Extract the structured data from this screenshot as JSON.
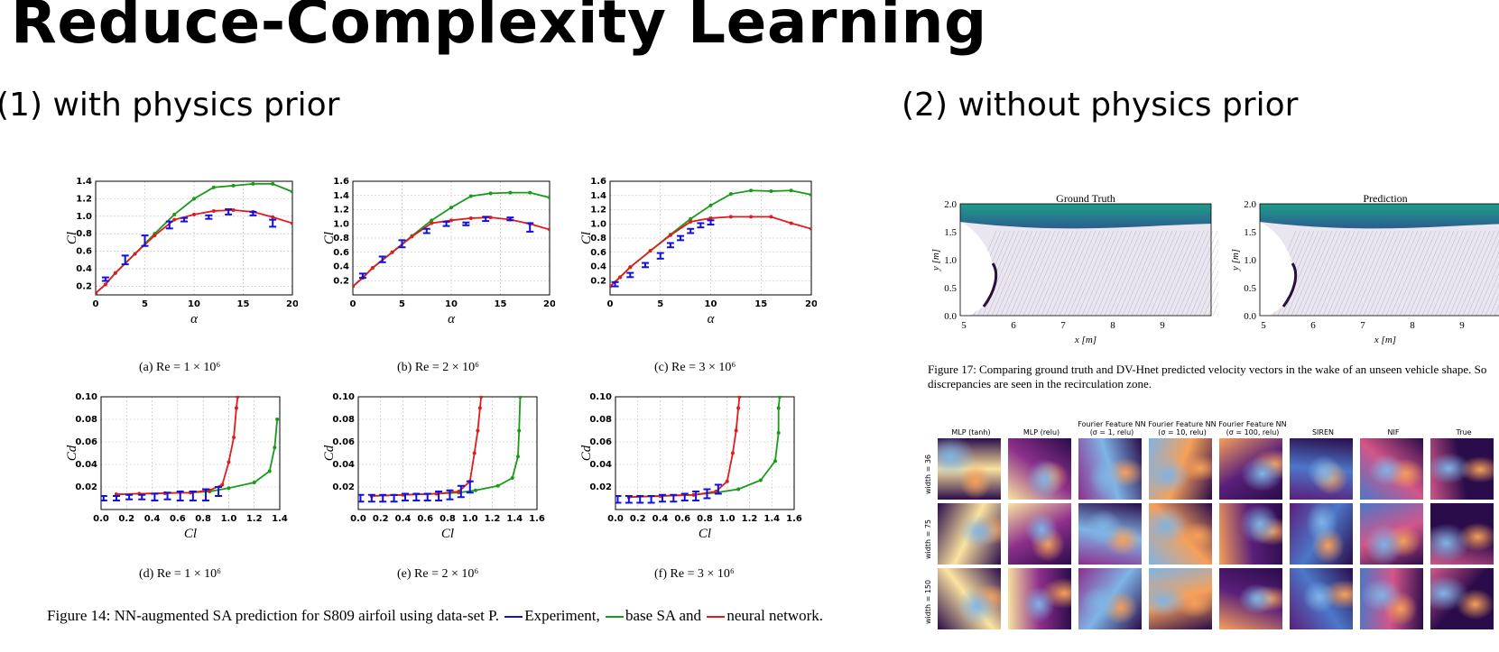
{
  "slide": {
    "title": "Reduce-Complexity Learning",
    "left_heading": "(1) with physics prior",
    "right_heading": "(2) without physics prior"
  },
  "colors": {
    "experiment": "#1010e0",
    "base_sa": "#1a9a1a",
    "neural": "#e01c1c",
    "grid": "#bbbbbb"
  },
  "subcaptions": [
    "(a)  Re = 1 × 10⁶",
    "(b)  Re = 2 × 10⁶",
    "(c)  Re = 3 × 10⁶",
    "(d)  Re = 1 × 10⁶",
    "(e)  Re = 2 × 10⁶",
    "(f)  Re = 3 × 10⁶"
  ],
  "figure14": {
    "text_before": "Figure 14: NN-augmented SA prediction for S809 airfoil using data-set P.",
    "legend_experiment": "Experiment,",
    "legend_base": "base SA and",
    "legend_neural": "neural",
    "text_after": "network."
  },
  "figure17": {
    "caption": "Figure 17:  Comparing ground truth and DV-Hnet predicted velocity vectors in the wake of an unseen vehicle shape.  So discrepancies are seen in the recirculation zone.",
    "panels": [
      {
        "title": "Ground Truth",
        "ylabel": "y [m]",
        "xlabel": "x [m]",
        "yticks": [
          "2.0",
          "1.5",
          "1.0",
          "0.5",
          "0.0"
        ],
        "xticks": [
          "5",
          "6",
          "7",
          "8",
          "9"
        ]
      },
      {
        "title": "Prediction",
        "ylabel": "y [m]",
        "xlabel": "x [m]",
        "yticks": [
          "2.0",
          "1.5",
          "1.0",
          "0.5",
          "0.0"
        ],
        "xticks": [
          "5",
          "6",
          "7",
          "8",
          "9"
        ]
      }
    ]
  },
  "grid_figure": {
    "columns": [
      "MLP (tanh)",
      "MLP (relu)",
      "Fourier Feature NN\n(σ = 1, relu)",
      "Fourier Feature NN\n(σ = 10, relu)",
      "Fourier Feature NN\n(σ = 100, relu)",
      "SIREN",
      "NIF",
      "True"
    ],
    "rows": [
      "width = 36",
      "width = 75",
      "width = 150"
    ]
  },
  "chart_data": [
    {
      "type": "line",
      "panel": "a",
      "xlabel": "α",
      "ylabel": "Cl",
      "xlim": [
        0,
        20
      ],
      "ylim": [
        0.1,
        1.4
      ],
      "xticks": [
        0,
        5,
        10,
        15,
        20
      ],
      "yticks": [
        0.2,
        0.4,
        0.6,
        0.8,
        1.0,
        1.2,
        1.4
      ],
      "grid": true,
      "series": [
        {
          "role": "base_sa",
          "x": [
            0,
            1,
            2,
            4,
            6,
            8,
            10,
            12,
            14,
            16,
            18,
            20
          ],
          "y": [
            0.12,
            0.22,
            0.35,
            0.57,
            0.8,
            1.02,
            1.2,
            1.33,
            1.35,
            1.37,
            1.37,
            1.28
          ]
        },
        {
          "role": "neural",
          "x": [
            0,
            1,
            2,
            4,
            6,
            8,
            10,
            12,
            14,
            16,
            18,
            20
          ],
          "y": [
            0.12,
            0.22,
            0.35,
            0.57,
            0.78,
            0.96,
            1.02,
            1.06,
            1.07,
            1.05,
            0.99,
            0.92
          ]
        },
        {
          "role": "experiment",
          "x": [
            1,
            3,
            5,
            7.5,
            9,
            11.5,
            13.5,
            16,
            18
          ],
          "y": [
            0.28,
            0.5,
            0.72,
            0.9,
            0.96,
            0.99,
            1.05,
            1.03,
            0.92
          ],
          "err": [
            0.02,
            0.05,
            0.06,
            0.04,
            0.02,
            0.02,
            0.03,
            0.02,
            0.04
          ]
        }
      ]
    },
    {
      "type": "line",
      "panel": "b",
      "xlabel": "α",
      "ylabel": "Cl",
      "xlim": [
        0,
        20
      ],
      "ylim": [
        0.0,
        1.6
      ],
      "xticks": [
        0,
        5,
        10,
        15,
        20
      ],
      "yticks": [
        0.2,
        0.4,
        0.6,
        0.8,
        1.0,
        1.2,
        1.4,
        1.6
      ],
      "grid": true,
      "series": [
        {
          "role": "base_sa",
          "x": [
            0,
            1,
            2,
            4,
            6,
            8,
            10,
            12,
            14,
            16,
            18,
            20
          ],
          "y": [
            0.12,
            0.24,
            0.38,
            0.6,
            0.83,
            1.05,
            1.23,
            1.39,
            1.43,
            1.44,
            1.44,
            1.37
          ]
        },
        {
          "role": "neural",
          "x": [
            0,
            1,
            2,
            4,
            6,
            8,
            10,
            12,
            14,
            16,
            18,
            20
          ],
          "y": [
            0.12,
            0.24,
            0.38,
            0.6,
            0.82,
            1.01,
            1.05,
            1.08,
            1.09,
            1.06,
            1.0,
            0.92
          ]
        },
        {
          "role": "experiment",
          "x": [
            1,
            3,
            5,
            7.5,
            9.5,
            11.5,
            13.5,
            16,
            18
          ],
          "y": [
            0.27,
            0.5,
            0.72,
            0.9,
            1.0,
            1.0,
            1.07,
            1.07,
            0.95
          ],
          "err": [
            0.03,
            0.04,
            0.05,
            0.03,
            0.03,
            0.02,
            0.03,
            0.02,
            0.06
          ]
        }
      ]
    },
    {
      "type": "line",
      "panel": "c",
      "xlabel": "α",
      "ylabel": "Cl",
      "xlim": [
        0,
        20
      ],
      "ylim": [
        0.0,
        1.6
      ],
      "xticks": [
        0,
        5,
        10,
        15,
        20
      ],
      "yticks": [
        0.2,
        0.4,
        0.6,
        0.8,
        1.0,
        1.2,
        1.4,
        1.6
      ],
      "grid": true,
      "series": [
        {
          "role": "base_sa",
          "x": [
            0,
            1,
            2,
            4,
            6,
            8,
            10,
            12,
            14,
            16,
            18,
            20
          ],
          "y": [
            0.12,
            0.25,
            0.39,
            0.62,
            0.85,
            1.07,
            1.26,
            1.42,
            1.47,
            1.46,
            1.47,
            1.41
          ]
        },
        {
          "role": "neural",
          "x": [
            0,
            1,
            2,
            4,
            6,
            8,
            10,
            12,
            14,
            16,
            18,
            20
          ],
          "y": [
            0.12,
            0.25,
            0.39,
            0.62,
            0.84,
            1.03,
            1.08,
            1.1,
            1.1,
            1.1,
            1.01,
            0.93
          ]
        },
        {
          "role": "experiment",
          "x": [
            0.5,
            2,
            3.5,
            5,
            6,
            7,
            8,
            9,
            10
          ],
          "y": [
            0.15,
            0.28,
            0.42,
            0.55,
            0.7,
            0.8,
            0.9,
            0.98,
            1.02
          ],
          "err": [
            0.03,
            0.03,
            0.03,
            0.04,
            0.03,
            0.03,
            0.03,
            0.03,
            0.03
          ]
        }
      ]
    },
    {
      "type": "line",
      "panel": "d",
      "xlabel": "Cl",
      "ylabel": "Cd",
      "xlim": [
        0,
        1.4
      ],
      "ylim": [
        0,
        0.1
      ],
      "xticks": [
        0.0,
        0.2,
        0.4,
        0.6,
        0.8,
        1.0,
        1.2,
        1.4
      ],
      "yticks": [
        0.02,
        0.04,
        0.06,
        0.08,
        0.1
      ],
      "grid": true,
      "series": [
        {
          "role": "base_sa",
          "x": [
            0.12,
            0.3,
            0.5,
            0.7,
            0.85,
            1.0,
            1.2,
            1.32,
            1.36,
            1.38
          ],
          "y": [
            0.0135,
            0.014,
            0.0145,
            0.015,
            0.016,
            0.019,
            0.024,
            0.034,
            0.055,
            0.08
          ]
        },
        {
          "role": "neural",
          "x": [
            0.12,
            0.3,
            0.5,
            0.7,
            0.85,
            0.95,
            1.0,
            1.04,
            1.06,
            1.07
          ],
          "y": [
            0.0135,
            0.014,
            0.0145,
            0.015,
            0.017,
            0.022,
            0.042,
            0.064,
            0.09,
            0.1
          ]
        },
        {
          "role": "experiment",
          "x": [
            0.02,
            0.12,
            0.22,
            0.32,
            0.42,
            0.52,
            0.62,
            0.72,
            0.82,
            0.92
          ],
          "y": [
            0.01,
            0.01,
            0.011,
            0.011,
            0.011,
            0.012,
            0.012,
            0.012,
            0.013,
            0.016
          ],
          "err": [
            0.002,
            0.002,
            0.002,
            0.002,
            0.003,
            0.003,
            0.004,
            0.004,
            0.005,
            0.004
          ]
        }
      ]
    },
    {
      "type": "line",
      "panel": "e",
      "xlabel": "Cl",
      "ylabel": "Cd",
      "xlim": [
        0,
        1.6
      ],
      "ylim": [
        0,
        0.1
      ],
      "xticks": [
        0.0,
        0.2,
        0.4,
        0.6,
        0.8,
        1.0,
        1.2,
        1.4,
        1.6
      ],
      "yticks": [
        0.02,
        0.04,
        0.06,
        0.08,
        0.1
      ],
      "grid": true,
      "series": [
        {
          "role": "base_sa",
          "x": [
            0.12,
            0.4,
            0.7,
            0.9,
            1.05,
            1.25,
            1.38,
            1.43,
            1.44,
            1.45
          ],
          "y": [
            0.012,
            0.013,
            0.014,
            0.015,
            0.017,
            0.021,
            0.028,
            0.047,
            0.07,
            0.1
          ]
        },
        {
          "role": "neural",
          "x": [
            0.12,
            0.4,
            0.7,
            0.9,
            1.0,
            1.04,
            1.07,
            1.09,
            1.1
          ],
          "y": [
            0.012,
            0.013,
            0.014,
            0.016,
            0.025,
            0.05,
            0.07,
            0.09,
            0.1
          ]
        },
        {
          "role": "experiment",
          "x": [
            0.02,
            0.12,
            0.22,
            0.32,
            0.42,
            0.52,
            0.62,
            0.72,
            0.82,
            0.92,
            1.0
          ],
          "y": [
            0.01,
            0.01,
            0.01,
            0.01,
            0.011,
            0.011,
            0.011,
            0.012,
            0.013,
            0.016,
            0.02
          ],
          "err": [
            0.003,
            0.003,
            0.003,
            0.003,
            0.003,
            0.003,
            0.003,
            0.004,
            0.004,
            0.005,
            0.005
          ]
        }
      ]
    },
    {
      "type": "line",
      "panel": "f",
      "xlabel": "Cl",
      "ylabel": "Cd",
      "xlim": [
        0,
        1.6
      ],
      "ylim": [
        0,
        0.1
      ],
      "xticks": [
        0.0,
        0.2,
        0.4,
        0.6,
        0.8,
        1.0,
        1.2,
        1.4,
        1.6
      ],
      "yticks": [
        0.02,
        0.04,
        0.06,
        0.08,
        0.1
      ],
      "grid": true,
      "series": [
        {
          "role": "base_sa",
          "x": [
            0.12,
            0.4,
            0.7,
            0.9,
            1.1,
            1.3,
            1.43,
            1.46,
            1.46,
            1.47
          ],
          "y": [
            0.011,
            0.012,
            0.013,
            0.015,
            0.018,
            0.026,
            0.043,
            0.068,
            0.09,
            0.1
          ]
        },
        {
          "role": "neural",
          "x": [
            0.12,
            0.4,
            0.7,
            0.9,
            1.0,
            1.05,
            1.08,
            1.1,
            1.11
          ],
          "y": [
            0.011,
            0.012,
            0.013,
            0.016,
            0.025,
            0.05,
            0.07,
            0.09,
            0.1
          ]
        },
        {
          "role": "experiment",
          "x": [
            0.02,
            0.12,
            0.22,
            0.32,
            0.42,
            0.52,
            0.62,
            0.72,
            0.82,
            0.92
          ],
          "y": [
            0.009,
            0.009,
            0.009,
            0.009,
            0.01,
            0.01,
            0.011,
            0.012,
            0.014,
            0.018
          ],
          "err": [
            0.003,
            0.003,
            0.003,
            0.003,
            0.003,
            0.003,
            0.003,
            0.004,
            0.004,
            0.004
          ]
        }
      ]
    }
  ]
}
